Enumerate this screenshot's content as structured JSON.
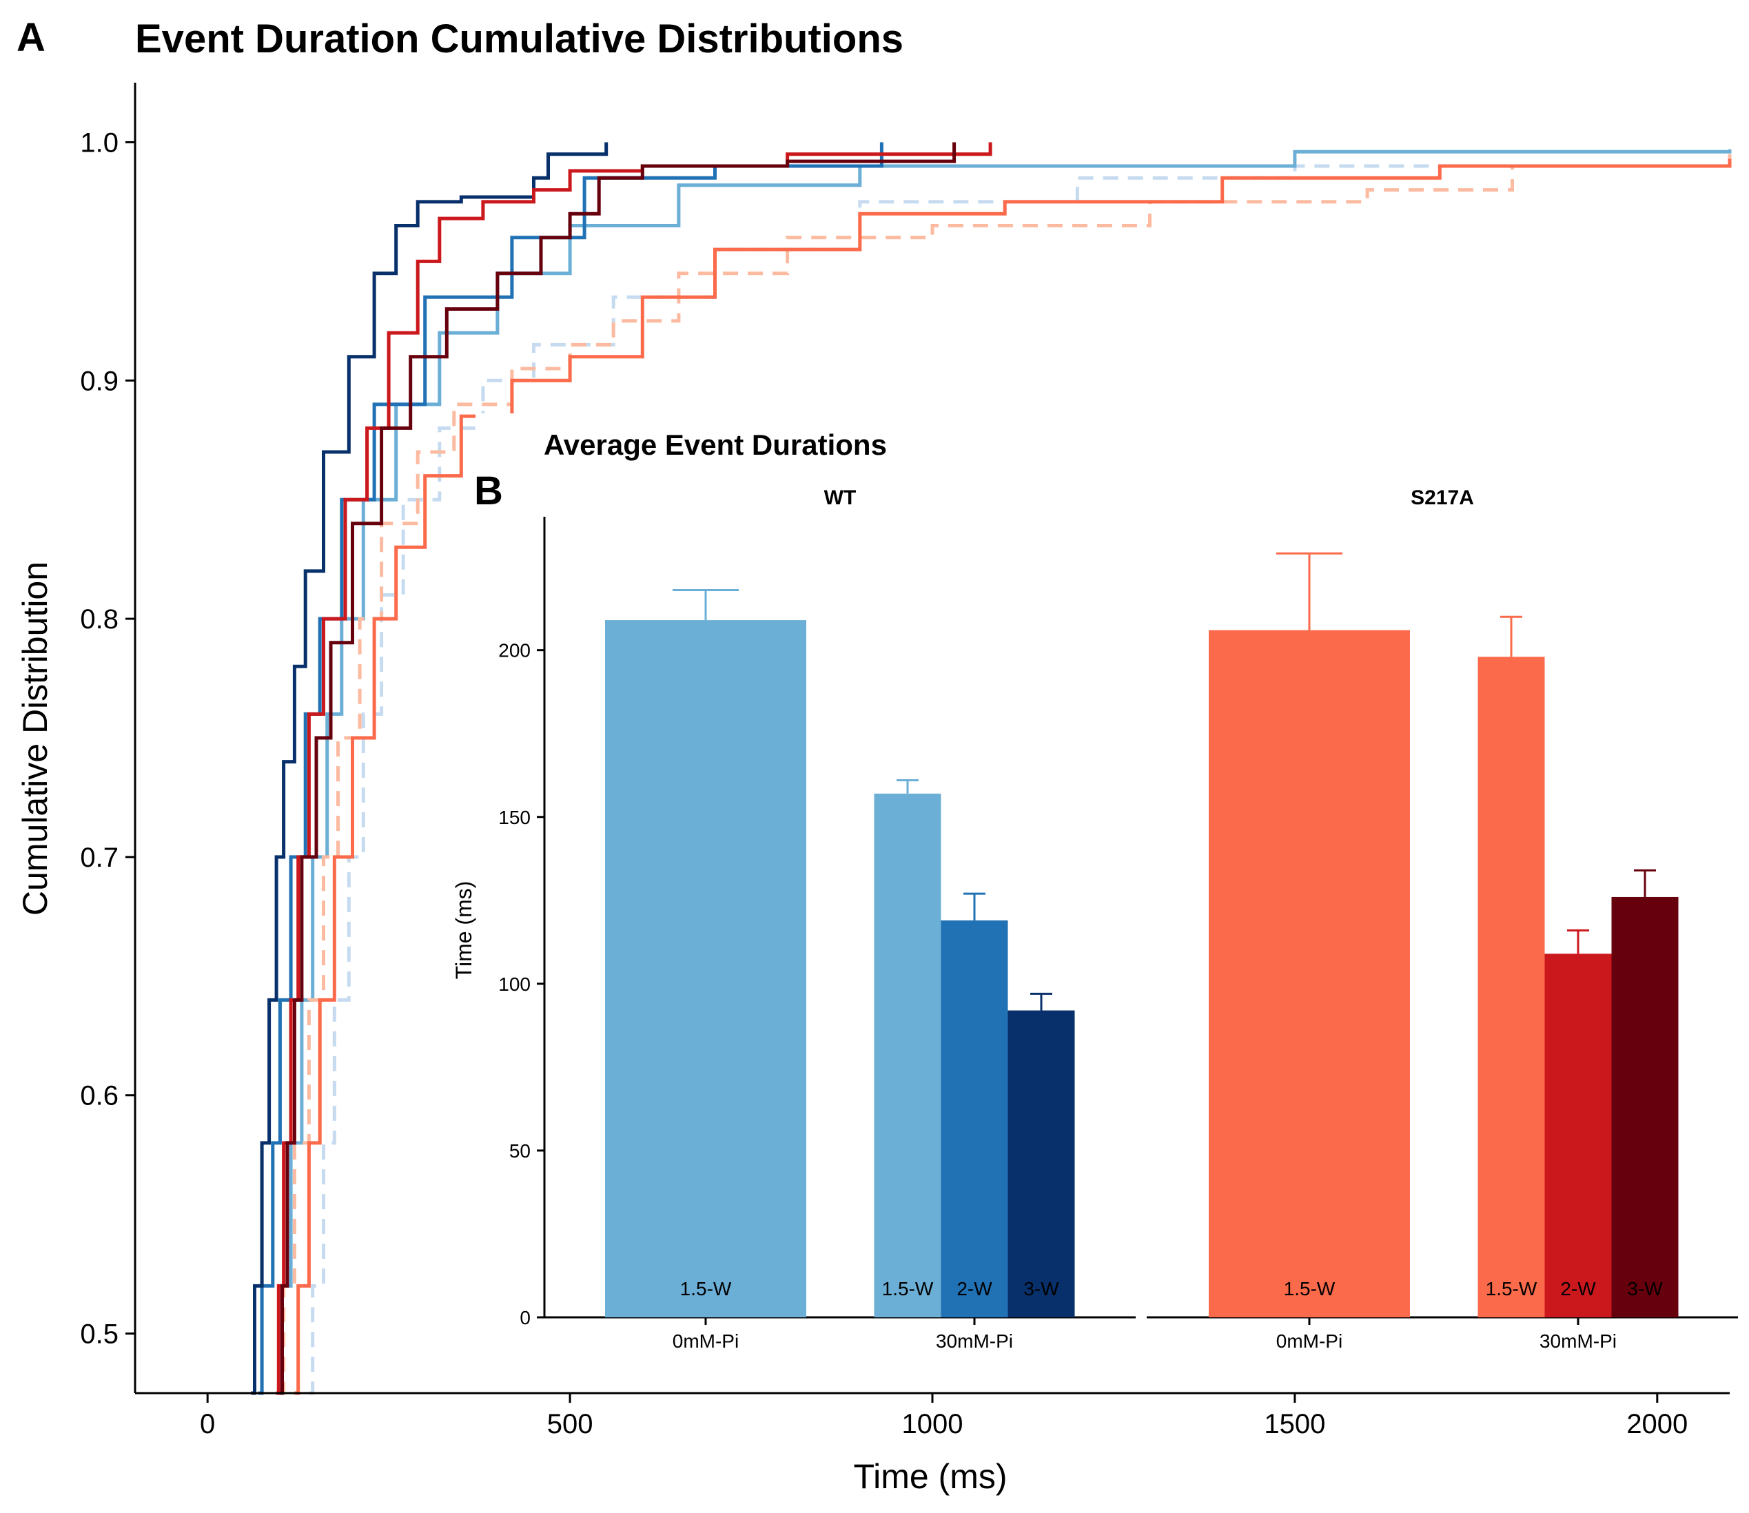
{
  "panel_a": {
    "letter": "A",
    "title": "Event Duration Cumulative Distributions",
    "xlabel": "Time (ms)",
    "ylabel": "Cumulative Distribution"
  },
  "panel_b": {
    "letter": "B",
    "title": "Average Event Durations",
    "ylabel": "Time (ms)"
  },
  "chart_data": [
    {
      "type": "line",
      "title": "Event Duration Cumulative Distributions",
      "xlabel": "Time (ms)",
      "ylabel": "Cumulative Distribution",
      "xlim": [
        -100,
        2100
      ],
      "ylim": [
        0.475,
        1.025
      ],
      "x_ticks": [
        0,
        500,
        1000,
        1500,
        2000
      ],
      "x_tick_labels": [
        "0",
        "500",
        "1000",
        "1500",
        "2000"
      ],
      "y_ticks": [
        0.5,
        0.6,
        0.7,
        0.8,
        0.9,
        1.0
      ],
      "y_tick_labels": [
        "0.5",
        "0.6",
        "0.7",
        "0.8",
        "0.9",
        "1.0"
      ],
      "grid": false,
      "series": [
        {
          "color": "#C6DBEF",
          "dash": true,
          "points": [
            [
              140,
              0.475
            ],
            [
              145,
              0.52
            ],
            [
              160,
              0.58
            ],
            [
              175,
              0.64
            ],
            [
              195,
              0.7
            ],
            [
              215,
              0.76
            ],
            [
              240,
              0.81
            ],
            [
              270,
              0.85
            ],
            [
              320,
              0.88
            ],
            [
              380,
              0.9
            ],
            [
              450,
              0.915
            ],
            [
              560,
              0.935
            ],
            [
              700,
              0.955
            ],
            [
              900,
              0.975
            ],
            [
              1200,
              0.985
            ],
            [
              1500,
              0.99
            ],
            [
              2100,
              0.995
            ]
          ]
        },
        {
          "color": "#6BAED6",
          "dash": false,
          "points": [
            [
              95,
              0.475
            ],
            [
              100,
              0.52
            ],
            [
              115,
              0.58
            ],
            [
              130,
              0.64
            ],
            [
              145,
              0.7
            ],
            [
              165,
              0.76
            ],
            [
              185,
              0.8
            ],
            [
              215,
              0.85
            ],
            [
              260,
              0.89
            ],
            [
              320,
              0.92
            ],
            [
              400,
              0.945
            ],
            [
              500,
              0.965
            ],
            [
              650,
              0.982
            ],
            [
              900,
              0.99
            ],
            [
              1500,
              0.996
            ],
            [
              2100,
              0.997
            ]
          ]
        },
        {
          "color": "#2171B5",
          "dash": false,
          "points": [
            [
              70,
              0.475
            ],
            [
              75,
              0.52
            ],
            [
              90,
              0.58
            ],
            [
              100,
              0.64
            ],
            [
              115,
              0.7
            ],
            [
              135,
              0.76
            ],
            [
              155,
              0.8
            ],
            [
              185,
              0.85
            ],
            [
              230,
              0.89
            ],
            [
              300,
              0.935
            ],
            [
              420,
              0.96
            ],
            [
              520,
              0.985
            ],
            [
              700,
              0.99
            ],
            [
              930,
              1.0
            ]
          ]
        },
        {
          "color": "#08306B",
          "dash": false,
          "points": [
            [
              60,
              0.475
            ],
            [
              65,
              0.52
            ],
            [
              75,
              0.58
            ],
            [
              85,
              0.64
            ],
            [
              95,
              0.7
            ],
            [
              105,
              0.74
            ],
            [
              120,
              0.78
            ],
            [
              135,
              0.82
            ],
            [
              160,
              0.87
            ],
            [
              195,
              0.91
            ],
            [
              230,
              0.945
            ],
            [
              260,
              0.965
            ],
            [
              290,
              0.975
            ],
            [
              350,
              0.977
            ],
            [
              450,
              0.985
            ],
            [
              470,
              0.995
            ],
            [
              550,
              1.0
            ]
          ]
        },
        {
          "color": "#FCBBA1",
          "dash": true,
          "points": [
            [
              100,
              0.475
            ],
            [
              105,
              0.52
            ],
            [
              120,
              0.58
            ],
            [
              140,
              0.64
            ],
            [
              160,
              0.7
            ],
            [
              180,
              0.75
            ],
            [
              210,
              0.8
            ],
            [
              240,
              0.84
            ],
            [
              290,
              0.87
            ],
            [
              340,
              0.89
            ],
            [
              420,
              0.905
            ],
            [
              500,
              0.915
            ],
            [
              560,
              0.925
            ],
            [
              650,
              0.945
            ],
            [
              800,
              0.96
            ],
            [
              1000,
              0.965
            ],
            [
              1300,
              0.975
            ],
            [
              1600,
              0.98
            ],
            [
              1800,
              0.99
            ],
            [
              2100,
              0.995
            ]
          ]
        },
        {
          "color": "#FB6A4A",
          "dash": false,
          "points": [
            [
              120,
              0.475
            ],
            [
              125,
              0.52
            ],
            [
              140,
              0.58
            ],
            [
              155,
              0.64
            ],
            [
              175,
              0.7
            ],
            [
              200,
              0.75
            ],
            [
              230,
              0.8
            ],
            [
              260,
              0.83
            ],
            [
              300,
              0.86
            ],
            [
              350,
              0.885
            ],
            [
              420,
              0.9
            ],
            [
              500,
              0.91
            ],
            [
              600,
              0.935
            ],
            [
              700,
              0.955
            ],
            [
              900,
              0.97
            ],
            [
              1100,
              0.975
            ],
            [
              1400,
              0.985
            ],
            [
              1700,
              0.99
            ],
            [
              2100,
              0.993
            ]
          ]
        },
        {
          "color": "#CB181D",
          "dash": false,
          "points": [
            [
              95,
              0.475
            ],
            [
              98,
              0.52
            ],
            [
              105,
              0.58
            ],
            [
              115,
              0.64
            ],
            [
              125,
              0.7
            ],
            [
              140,
              0.76
            ],
            [
              160,
              0.8
            ],
            [
              190,
              0.85
            ],
            [
              220,
              0.88
            ],
            [
              250,
              0.92
            ],
            [
              290,
              0.95
            ],
            [
              320,
              0.968
            ],
            [
              380,
              0.975
            ],
            [
              450,
              0.98
            ],
            [
              500,
              0.988
            ],
            [
              600,
              0.99
            ],
            [
              800,
              0.995
            ],
            [
              1080,
              1.0
            ]
          ]
        },
        {
          "color": "#67000D",
          "dash": false,
          "points": [
            [
              100,
              0.475
            ],
            [
              103,
              0.52
            ],
            [
              110,
              0.58
            ],
            [
              120,
              0.64
            ],
            [
              130,
              0.7
            ],
            [
              150,
              0.75
            ],
            [
              170,
              0.79
            ],
            [
              200,
              0.84
            ],
            [
              240,
              0.88
            ],
            [
              280,
              0.91
            ],
            [
              330,
              0.93
            ],
            [
              400,
              0.945
            ],
            [
              460,
              0.96
            ],
            [
              500,
              0.97
            ],
            [
              540,
              0.985
            ],
            [
              600,
              0.99
            ],
            [
              800,
              0.992
            ],
            [
              1030,
              1.0
            ]
          ]
        }
      ]
    },
    {
      "type": "bar",
      "title": "Average Event Durations",
      "ylabel": "Time (ms)",
      "ylim": [
        0,
        240
      ],
      "y_ticks": [
        0,
        50,
        100,
        150,
        200
      ],
      "y_tick_labels": [
        "0",
        "50",
        "100",
        "150",
        "200"
      ],
      "grid": false,
      "facets": [
        {
          "label": "WT",
          "categories": [
            "0mM-Pi",
            "30mM-Pi"
          ],
          "bars": [
            {
              "category": "0mM-Pi",
              "label": "1.5-W",
              "value": 209,
              "error_upper": 218,
              "color": "#6BAED6"
            },
            {
              "category": "30mM-Pi",
              "label": "1.5-W",
              "value": 157,
              "error_upper": 161,
              "color": "#6BAED6"
            },
            {
              "category": "30mM-Pi",
              "label": "2-W",
              "value": 119,
              "error_upper": 127,
              "color": "#2171B5"
            },
            {
              "category": "30mM-Pi",
              "label": "3-W",
              "value": 92,
              "error_upper": 97,
              "color": "#08306B"
            }
          ]
        },
        {
          "label": "S217A",
          "categories": [
            "0mM-Pi",
            "30mM-Pi"
          ],
          "bars": [
            {
              "category": "0mM-Pi",
              "label": "1.5-W",
              "value": 206,
              "error_upper": 229,
              "color": "#FB6A4A"
            },
            {
              "category": "30mM-Pi",
              "label": "1.5-W",
              "value": 198,
              "error_upper": 210,
              "color": "#FB6A4A"
            },
            {
              "category": "30mM-Pi",
              "label": "2-W",
              "value": 109,
              "error_upper": 116,
              "color": "#CB181D"
            },
            {
              "category": "30mM-Pi",
              "label": "3-W",
              "value": 126,
              "error_upper": 134,
              "color": "#67000D"
            }
          ]
        }
      ]
    }
  ]
}
